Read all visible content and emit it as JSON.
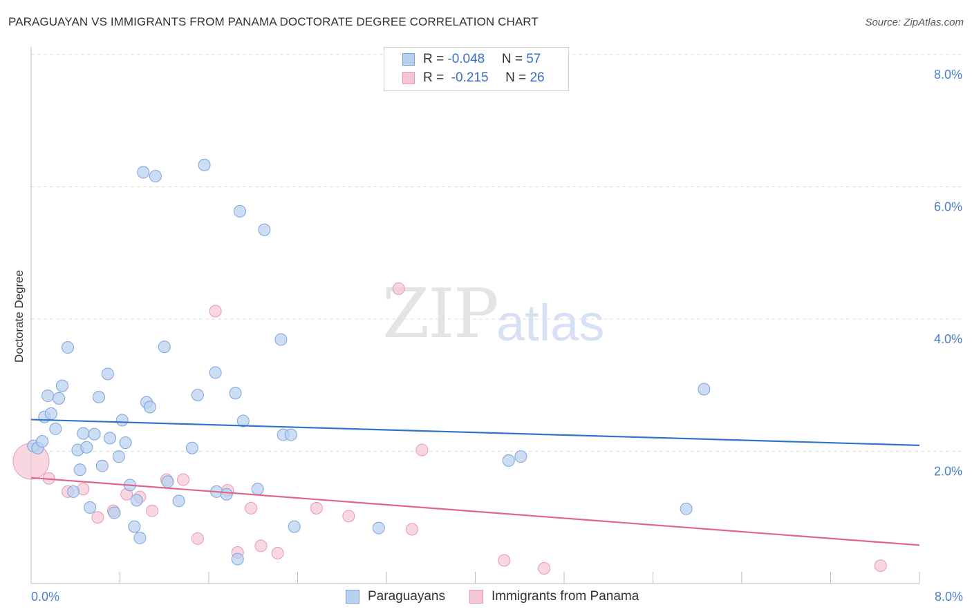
{
  "title": "PARAGUAYAN VS IMMIGRANTS FROM PANAMA DOCTORATE DEGREE CORRELATION CHART",
  "source": "Source: ZipAtlas.com",
  "watermark": {
    "zip": "ZIP",
    "atlas": "atlas"
  },
  "legend": {
    "series1": {
      "r_label": "R = ",
      "r_value": "-0.048",
      "n_label": "N = ",
      "n_value": "57"
    },
    "series2": {
      "r_label": "R = ",
      "r_value": "-0.215",
      "n_label": "N = ",
      "n_value": "26"
    }
  },
  "bottom_legend": {
    "series1": "Paraguayans",
    "series2": "Immigrants from Panama"
  },
  "colors": {
    "blue_fill": "#b8d0f0",
    "blue_stroke": "#7aa3dc",
    "blue_line": "#2f74cc",
    "pink_fill": "#f6c6d4",
    "pink_stroke": "#e898b0",
    "pink_line": "#e0648e"
  },
  "chart_data": {
    "type": "scatter",
    "title": "PARAGUAYAN VS IMMIGRANTS FROM PANAMA DOCTORATE DEGREE CORRELATION CHART",
    "xlabel": "",
    "ylabel": "Doctorate Degree",
    "xlim": [
      0,
      8
    ],
    "ylim": [
      0,
      8
    ],
    "x_tick_labels": [
      "0.0%",
      "8.0%"
    ],
    "y_ticks": [
      2,
      4,
      6,
      8
    ],
    "y_tick_labels": [
      "2.0%",
      "4.0%",
      "6.0%",
      "8.0%"
    ],
    "grid": true,
    "series": [
      {
        "name": "Paraguayans",
        "r": -0.048,
        "n": 57,
        "trend": [
          [
            0,
            2.48
          ],
          [
            8,
            2.09
          ]
        ],
        "points": [
          [
            0.02,
            2.08
          ],
          [
            0.06,
            2.05
          ],
          [
            0.1,
            2.15
          ],
          [
            0.12,
            2.52
          ],
          [
            0.15,
            2.84
          ],
          [
            0.18,
            2.57
          ],
          [
            0.22,
            2.34
          ],
          [
            0.25,
            2.8
          ],
          [
            0.28,
            2.99
          ],
          [
            0.33,
            3.57
          ],
          [
            0.38,
            1.39
          ],
          [
            0.42,
            2.02
          ],
          [
            0.44,
            1.72
          ],
          [
            0.47,
            2.27
          ],
          [
            0.5,
            2.06
          ],
          [
            0.53,
            1.15
          ],
          [
            0.57,
            2.26
          ],
          [
            0.61,
            2.82
          ],
          [
            0.64,
            1.78
          ],
          [
            0.69,
            3.17
          ],
          [
            0.71,
            2.2
          ],
          [
            0.75,
            1.07
          ],
          [
            0.79,
            1.92
          ],
          [
            0.82,
            2.47
          ],
          [
            0.85,
            2.13
          ],
          [
            0.89,
            1.49
          ],
          [
            0.93,
            0.86
          ],
          [
            0.95,
            1.26
          ],
          [
            0.98,
            0.69
          ],
          [
            1.01,
            6.22
          ],
          [
            1.04,
            2.74
          ],
          [
            1.07,
            2.67
          ],
          [
            1.12,
            6.16
          ],
          [
            1.2,
            3.58
          ],
          [
            1.23,
            1.54
          ],
          [
            1.33,
            1.25
          ],
          [
            1.45,
            2.05
          ],
          [
            1.5,
            2.85
          ],
          [
            1.56,
            6.33
          ],
          [
            1.66,
            3.19
          ],
          [
            1.67,
            1.39
          ],
          [
            1.76,
            1.35
          ],
          [
            1.84,
            2.88
          ],
          [
            1.86,
            0.37
          ],
          [
            1.88,
            5.63
          ],
          [
            1.91,
            2.46
          ],
          [
            2.04,
            1.43
          ],
          [
            2.1,
            5.35
          ],
          [
            2.25,
            3.69
          ],
          [
            2.27,
            2.25
          ],
          [
            2.34,
            2.25
          ],
          [
            2.37,
            0.86
          ],
          [
            3.13,
            0.84
          ],
          [
            4.3,
            1.86
          ],
          [
            4.41,
            1.92
          ],
          [
            5.9,
            1.13
          ],
          [
            6.06,
            2.94
          ]
        ]
      },
      {
        "name": "Immigrants from Panama",
        "r": -0.215,
        "n": 26,
        "trend": [
          [
            0,
            1.6
          ],
          [
            8,
            0.58
          ]
        ],
        "points": [
          [
            0.0,
            1.85
          ],
          [
            0.16,
            1.59
          ],
          [
            0.33,
            1.39
          ],
          [
            0.47,
            1.43
          ],
          [
            0.6,
            1.0
          ],
          [
            0.74,
            1.1
          ],
          [
            0.86,
            1.35
          ],
          [
            0.98,
            1.31
          ],
          [
            1.09,
            1.1
          ],
          [
            1.22,
            1.57
          ],
          [
            1.37,
            1.57
          ],
          [
            1.5,
            0.68
          ],
          [
            1.66,
            4.12
          ],
          [
            1.77,
            1.41
          ],
          [
            1.86,
            0.47
          ],
          [
            1.98,
            1.14
          ],
          [
            2.07,
            0.57
          ],
          [
            2.22,
            0.46
          ],
          [
            2.57,
            1.14
          ],
          [
            2.86,
            1.02
          ],
          [
            3.31,
            4.46
          ],
          [
            3.43,
            0.82
          ],
          [
            3.52,
            2.02
          ],
          [
            4.26,
            0.35
          ],
          [
            4.62,
            0.23
          ],
          [
            7.65,
            0.27
          ]
        ]
      }
    ]
  }
}
